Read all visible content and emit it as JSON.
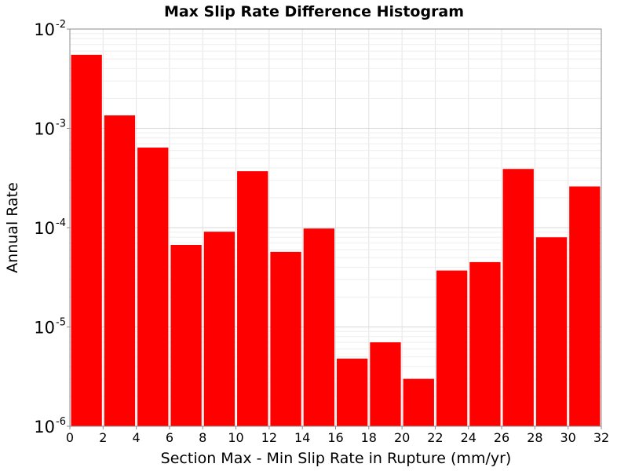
{
  "chart_data": {
    "type": "bar",
    "title": "Max Slip Rate Difference Histogram",
    "xlabel": "Section Max - Min Slip Rate in Rupture (mm/yr)",
    "ylabel": "Annual Rate",
    "y_scale": "log",
    "xlim": [
      0,
      32
    ],
    "ylim": [
      1e-06,
      0.01
    ],
    "bar_color": "#ff0000",
    "x_tick_labels": [
      "0",
      "2",
      "4",
      "6",
      "8",
      "10",
      "12",
      "14",
      "16",
      "18",
      "20",
      "22",
      "24",
      "26",
      "28",
      "30",
      "32"
    ],
    "y_tick_labels": [
      {
        "base": "10",
        "exp": "-2"
      },
      {
        "base": "10",
        "exp": "-3"
      },
      {
        "base": "10",
        "exp": "-4"
      },
      {
        "base": "10",
        "exp": "-5"
      },
      {
        "base": "10",
        "exp": "-6"
      }
    ],
    "bins": [
      {
        "x0": 0,
        "x1": 2,
        "value": 0.0055
      },
      {
        "x0": 2,
        "x1": 4,
        "value": 0.00135
      },
      {
        "x0": 4,
        "x1": 6,
        "value": 0.00064
      },
      {
        "x0": 6,
        "x1": 8,
        "value": 6.7e-05
      },
      {
        "x0": 8,
        "x1": 10,
        "value": 9.1e-05
      },
      {
        "x0": 10,
        "x1": 12,
        "value": 0.00037
      },
      {
        "x0": 12,
        "x1": 14,
        "value": 5.7e-05
      },
      {
        "x0": 14,
        "x1": 16,
        "value": 9.8e-05
      },
      {
        "x0": 16,
        "x1": 18,
        "value": 4.8e-06
      },
      {
        "x0": 18,
        "x1": 20,
        "value": 7e-06
      },
      {
        "x0": 20,
        "x1": 22,
        "value": 3e-06
      },
      {
        "x0": 22,
        "x1": 24,
        "value": 3.7e-05
      },
      {
        "x0": 24,
        "x1": 26,
        "value": 4.5e-05
      },
      {
        "x0": 26,
        "x1": 28,
        "value": 0.00039
      },
      {
        "x0": 28,
        "x1": 30,
        "value": 8e-05
      },
      {
        "x0": 30,
        "x1": 32,
        "value": 0.00026
      }
    ],
    "grid": true,
    "legend": "none"
  }
}
